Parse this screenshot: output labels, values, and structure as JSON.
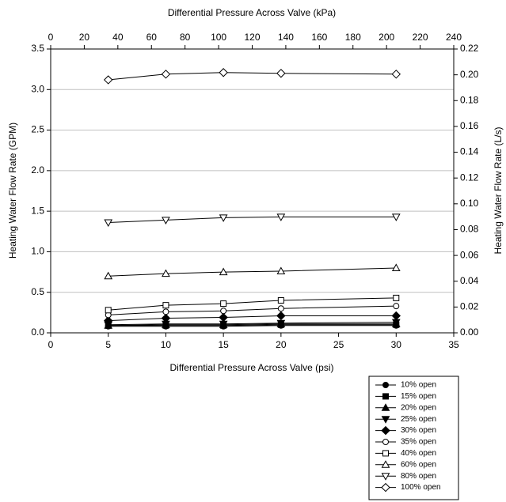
{
  "chart_data": {
    "type": "line",
    "title": "Differential Pressure Across Valve (kPa)",
    "x_label": "Differential Pressure Across Valve (psi)",
    "y_label": "Heating Water Flow Rate (GPM)",
    "y2_label": "Heating Water Flow Rate (L/s)",
    "x": [
      5,
      10,
      15,
      20,
      30
    ],
    "xlim": [
      0,
      35
    ],
    "xticks": [
      0,
      5,
      10,
      15,
      20,
      25,
      30,
      35
    ],
    "x2lim": [
      0,
      240
    ],
    "x2ticks": [
      0,
      20,
      40,
      60,
      80,
      100,
      120,
      140,
      160,
      180,
      200,
      220,
      240
    ],
    "ylim": [
      0,
      3.5
    ],
    "yticks": [
      {
        "value": 0,
        "label": "0.0"
      },
      {
        "value": 0.5,
        "label": "0.5"
      },
      {
        "value": 1,
        "label": "1.0"
      },
      {
        "value": 1.5,
        "label": "1.5"
      },
      {
        "value": 2,
        "label": "2.0"
      },
      {
        "value": 2.5,
        "label": "2.5"
      },
      {
        "value": 3,
        "label": "3.0"
      },
      {
        "value": 3.5,
        "label": "3.5"
      }
    ],
    "y2lim": [
      0,
      0.22
    ],
    "y2ticks": [
      {
        "value": 0,
        "label": "0.00"
      },
      {
        "value": 0.02,
        "label": "0.02"
      },
      {
        "value": 0.04,
        "label": "0.04"
      },
      {
        "value": 0.06,
        "label": "0.06"
      },
      {
        "value": 0.08,
        "label": "0.08"
      },
      {
        "value": 0.1,
        "label": "0.10"
      },
      {
        "value": 0.12,
        "label": "0.12"
      },
      {
        "value": 0.14,
        "label": "0.14"
      },
      {
        "value": 0.16,
        "label": "0.16"
      },
      {
        "value": 0.18,
        "label": "0.18"
      },
      {
        "value": 0.2,
        "label": "0.20"
      },
      {
        "value": 0.22,
        "label": "0.22"
      }
    ],
    "grid": true,
    "legend": "bottom-right",
    "series": [
      {
        "name": "10% open",
        "color": "#000000",
        "marker": "circle",
        "filled": true,
        "values": [
          0.08,
          0.08,
          0.08,
          0.09,
          0.09
        ]
      },
      {
        "name": "15% open",
        "color": "#000000",
        "marker": "square",
        "filled": true,
        "values": [
          0.09,
          0.09,
          0.09,
          0.1,
          0.1
        ]
      },
      {
        "name": "20% open",
        "color": "#000000",
        "marker": "triangle-up",
        "filled": true,
        "values": [
          0.09,
          0.1,
          0.1,
          0.11,
          0.11
        ]
      },
      {
        "name": "25% open",
        "color": "#000000",
        "marker": "triangle-down",
        "filled": true,
        "values": [
          0.1,
          0.11,
          0.11,
          0.12,
          0.13
        ]
      },
      {
        "name": "30% open",
        "color": "#000000",
        "marker": "diamond",
        "filled": true,
        "values": [
          0.15,
          0.18,
          0.19,
          0.21,
          0.21
        ]
      },
      {
        "name": "35% open",
        "color": "#000000",
        "marker": "circle",
        "filled": false,
        "values": [
          0.22,
          0.26,
          0.27,
          0.3,
          0.33
        ]
      },
      {
        "name": "40% open",
        "color": "#000000",
        "marker": "square",
        "filled": false,
        "values": [
          0.28,
          0.34,
          0.36,
          0.4,
          0.43
        ]
      },
      {
        "name": "60% open",
        "color": "#000000",
        "marker": "triangle-up",
        "filled": false,
        "values": [
          0.7,
          0.73,
          0.75,
          0.76,
          0.8
        ]
      },
      {
        "name": "80% open",
        "color": "#000000",
        "marker": "triangle-down",
        "filled": false,
        "values": [
          1.36,
          1.39,
          1.42,
          1.43,
          1.43
        ]
      },
      {
        "name": "100% open",
        "color": "#000000",
        "marker": "diamond",
        "filled": false,
        "values": [
          3.12,
          3.19,
          3.21,
          3.2,
          3.19
        ]
      }
    ]
  }
}
